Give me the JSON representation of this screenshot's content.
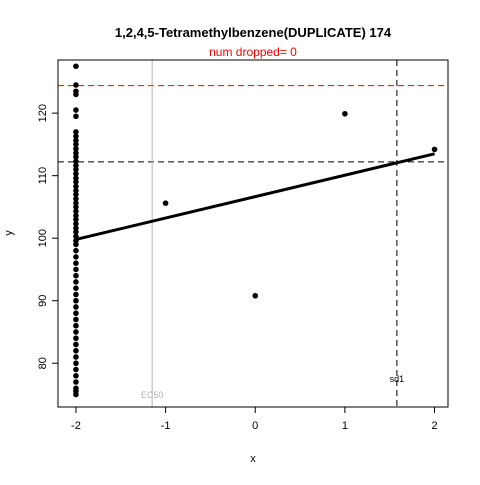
{
  "chart_data": {
    "type": "scatter",
    "title": "1,2,4,5-Tetramethylbenzene(DUPLICATE) 174",
    "subtitle": "num dropped= 0",
    "xlabel": "x",
    "ylabel": "y",
    "xlim": [
      -2.2,
      2.15
    ],
    "ylim": [
      73,
      128.5
    ],
    "x_ticks": [
      -2,
      -1,
      0,
      1,
      2
    ],
    "y_ticks": [
      80,
      90,
      100,
      110,
      120
    ],
    "grid": false,
    "points": [
      {
        "x": -2,
        "y": 127.5
      },
      {
        "x": -2,
        "y": 124.5
      },
      {
        "x": -2,
        "y": 123.5
      },
      {
        "x": -2,
        "y": 123.0
      },
      {
        "x": -2,
        "y": 120.5
      },
      {
        "x": -2,
        "y": 119.5
      },
      {
        "x": -2,
        "y": 117.0
      },
      {
        "x": -2,
        "y": 116.3
      },
      {
        "x": -2,
        "y": 115.6
      },
      {
        "x": -2,
        "y": 115.0
      },
      {
        "x": -2,
        "y": 114.3
      },
      {
        "x": -2,
        "y": 113.6
      },
      {
        "x": -2,
        "y": 113.0
      },
      {
        "x": -2,
        "y": 112.3
      },
      {
        "x": -2,
        "y": 111.6
      },
      {
        "x": -2,
        "y": 111.0
      },
      {
        "x": -2,
        "y": 110.3
      },
      {
        "x": -2,
        "y": 109.6
      },
      {
        "x": -2,
        "y": 109.0
      },
      {
        "x": -2,
        "y": 108.3
      },
      {
        "x": -2,
        "y": 107.6
      },
      {
        "x": -2,
        "y": 107.0
      },
      {
        "x": -2,
        "y": 106.3
      },
      {
        "x": -2,
        "y": 105.6
      },
      {
        "x": -2,
        "y": 105.0
      },
      {
        "x": -2,
        "y": 104.3
      },
      {
        "x": -2,
        "y": 103.6
      },
      {
        "x": -2,
        "y": 103.0
      },
      {
        "x": -2,
        "y": 102.3
      },
      {
        "x": -2,
        "y": 101.6
      },
      {
        "x": -2,
        "y": 101.0
      },
      {
        "x": -2,
        "y": 100.3
      },
      {
        "x": -2,
        "y": 99.6
      },
      {
        "x": -2,
        "y": 99.0
      },
      {
        "x": -2,
        "y": 98.0
      },
      {
        "x": -2,
        "y": 97.0
      },
      {
        "x": -2,
        "y": 96.0
      },
      {
        "x": -2,
        "y": 95.0
      },
      {
        "x": -2,
        "y": 94.0
      },
      {
        "x": -2,
        "y": 93.0
      },
      {
        "x": -2,
        "y": 92.0
      },
      {
        "x": -2,
        "y": 91.0
      },
      {
        "x": -2,
        "y": 90.0
      },
      {
        "x": -2,
        "y": 89.0
      },
      {
        "x": -2,
        "y": 88.0
      },
      {
        "x": -2,
        "y": 87.0
      },
      {
        "x": -2,
        "y": 86.0
      },
      {
        "x": -2,
        "y": 85.0
      },
      {
        "x": -2,
        "y": 84.0
      },
      {
        "x": -2,
        "y": 83.0
      },
      {
        "x": -2,
        "y": 82.0
      },
      {
        "x": -2,
        "y": 81.0
      },
      {
        "x": -2,
        "y": 80.0
      },
      {
        "x": -2,
        "y": 79.0
      },
      {
        "x": -2,
        "y": 78.0
      },
      {
        "x": -2,
        "y": 77.0
      },
      {
        "x": -2,
        "y": 76.0
      },
      {
        "x": -2,
        "y": 75.5
      },
      {
        "x": -2,
        "y": 75.0
      },
      {
        "x": -1,
        "y": 105.6
      },
      {
        "x": 0,
        "y": 90.8
      },
      {
        "x": 1,
        "y": 119.9
      },
      {
        "x": 2,
        "y": 114.2
      }
    ],
    "fit_line": {
      "x": [
        -2,
        2
      ],
      "y": [
        99.8,
        113.5
      ]
    },
    "hlines": [
      {
        "y": 124.4,
        "color": "#ff0000",
        "style": "dashed"
      },
      {
        "y": 112.2,
        "color": "#000000",
        "style": "dashed"
      }
    ],
    "vlines": [
      {
        "x": -1.15,
        "color": "#b3b3b3",
        "style": "solid",
        "label": "EC50"
      },
      {
        "x": 1.58,
        "color": "#000000",
        "style": "dashed",
        "label": "sd1"
      }
    ]
  }
}
